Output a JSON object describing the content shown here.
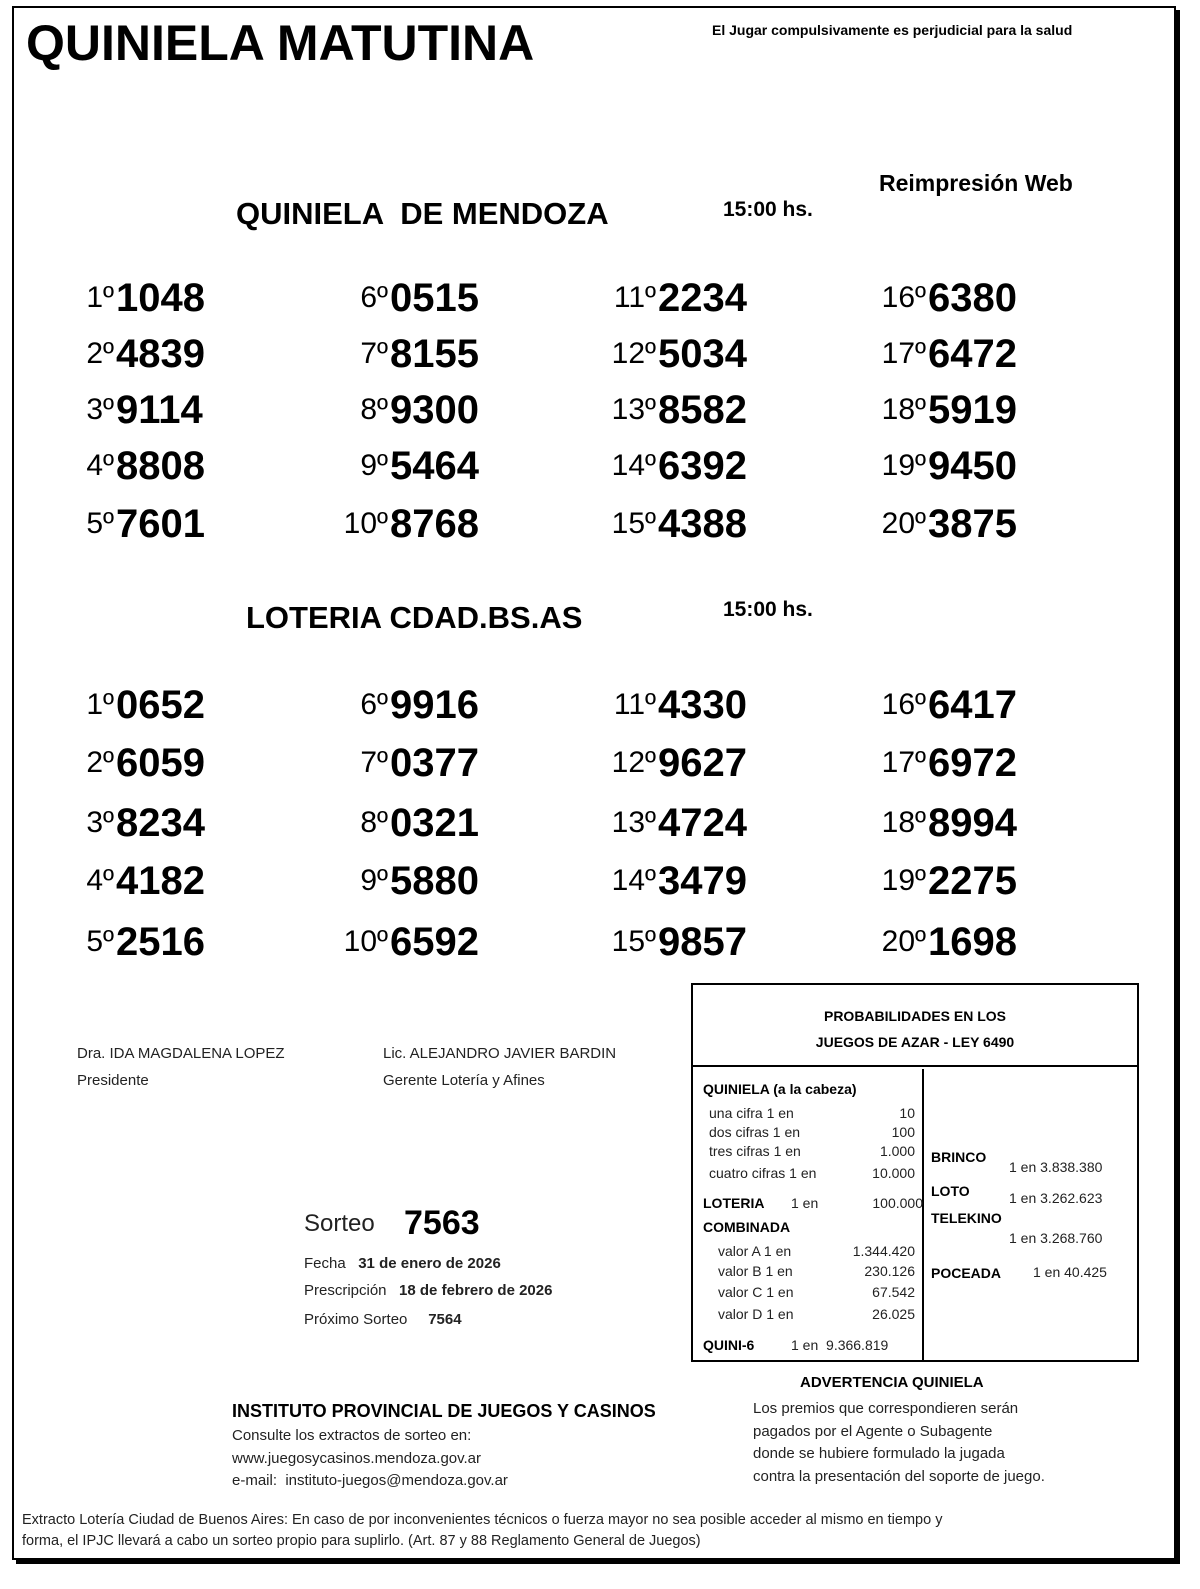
{
  "header": {
    "title": "QUINIELA MATUTINA",
    "warning": "El Jugar compulsivamente es perjudicial para la salud",
    "reprint": "Reimpresión Web"
  },
  "mendoza": {
    "title": "QUINIELA  DE MENDOZA",
    "time": "15:00 hs.",
    "results": [
      {
        "pos": "1º",
        "num": "1048"
      },
      {
        "pos": "2º",
        "num": "4839"
      },
      {
        "pos": "3º",
        "num": "9114"
      },
      {
        "pos": "4º",
        "num": "8808"
      },
      {
        "pos": "5º",
        "num": "7601"
      },
      {
        "pos": "6º",
        "num": "0515"
      },
      {
        "pos": "7º",
        "num": "8155"
      },
      {
        "pos": "8º",
        "num": "9300"
      },
      {
        "pos": "9º",
        "num": "5464"
      },
      {
        "pos": "10º",
        "num": "8768"
      },
      {
        "pos": "11º",
        "num": "2234"
      },
      {
        "pos": "12º",
        "num": "5034"
      },
      {
        "pos": "13º",
        "num": "8582"
      },
      {
        "pos": "14º",
        "num": "6392"
      },
      {
        "pos": "15º",
        "num": "4388"
      },
      {
        "pos": "16º",
        "num": "6380"
      },
      {
        "pos": "17º",
        "num": "6472"
      },
      {
        "pos": "18º",
        "num": "5919"
      },
      {
        "pos": "19º",
        "num": "9450"
      },
      {
        "pos": "20º",
        "num": "3875"
      }
    ]
  },
  "loteria": {
    "title": "LOTERIA CDAD.BS.AS",
    "time": "15:00 hs.",
    "results": [
      {
        "pos": "1º",
        "num": "0652"
      },
      {
        "pos": "2º",
        "num": "6059"
      },
      {
        "pos": "3º",
        "num": "8234"
      },
      {
        "pos": "4º",
        "num": "4182"
      },
      {
        "pos": "5º",
        "num": "2516"
      },
      {
        "pos": "6º",
        "num": "9916"
      },
      {
        "pos": "7º",
        "num": "0377"
      },
      {
        "pos": "8º",
        "num": "0321"
      },
      {
        "pos": "9º",
        "num": "5880"
      },
      {
        "pos": "10º",
        "num": "6592"
      },
      {
        "pos": "11º",
        "num": "4330"
      },
      {
        "pos": "12º",
        "num": "9627"
      },
      {
        "pos": "13º",
        "num": "4724"
      },
      {
        "pos": "14º",
        "num": "3479"
      },
      {
        "pos": "15º",
        "num": "9857"
      },
      {
        "pos": "16º",
        "num": "6417"
      },
      {
        "pos": "17º",
        "num": "6972"
      },
      {
        "pos": "18º",
        "num": "8994"
      },
      {
        "pos": "19º",
        "num": "2275"
      },
      {
        "pos": "20º",
        "num": "1698"
      }
    ]
  },
  "signatures": [
    {
      "name": "Dra. IDA MAGDALENA LOPEZ",
      "role": "Presidente"
    },
    {
      "name": "Lic. ALEJANDRO JAVIER BARDIN",
      "role": "Gerente Lotería y Afines"
    }
  ],
  "sorteo": {
    "label": "Sorteo",
    "number": "7563",
    "fecha_label": "Fecha",
    "fecha": "31 de enero de 2026",
    "prescripcion_label": "Prescripción",
    "prescripcion": "18 de febrero de 2026",
    "proximo_label": "Próximo Sorteo",
    "proximo": "7564"
  },
  "probabilidades": {
    "title1": "PROBABILIDADES EN LOS",
    "title2": "JUEGOS DE AZAR - LEY 6490",
    "quiniela_title": "QUINIELA (a la cabeza)",
    "quiniela": [
      {
        "label": "una cifra  1 en",
        "value": "10"
      },
      {
        "label": "dos cifras 1 en",
        "value": "100"
      },
      {
        "label": "tres cifras 1 en",
        "value": "1.000"
      },
      {
        "label": "cuatro cifras 1 en",
        "value": "10.000"
      }
    ],
    "loteria_label": "LOTERIA",
    "loteria_en": "1 en",
    "loteria_value": "100.000",
    "combinada_title": "COMBINADA",
    "combinada": [
      {
        "label": "valor A 1 en",
        "value": "1.344.420"
      },
      {
        "label": "valor B 1 en",
        "value": "230.126"
      },
      {
        "label": "valor C 1 en",
        "value": "67.542"
      },
      {
        "label": "valor D 1 en",
        "value": "26.025"
      }
    ],
    "quini6_label": "QUINI-6",
    "quini6_value": "1 en  9.366.819",
    "brinco_label": "BRINCO",
    "brinco_value": "1 en 3.838.380",
    "loto_label": "LOTO",
    "loto_value": "1 en 3.262.623",
    "telekino_label": "TELEKINO",
    "telekino_value": "1 en 3.268.760",
    "poceada_label": "POCEADA",
    "poceada_value": "1 en 40.425"
  },
  "advertencia": {
    "title": "ADVERTENCIA QUINIELA",
    "lines": [
      "Los premios que correspondieren serán",
      "pagados por el Agente o Subagente",
      "donde se hubiere formulado la jugada",
      "contra la presentación del soporte de juego."
    ]
  },
  "instituto": {
    "title": "INSTITUTO PROVINCIAL DE JUEGOS Y CASINOS",
    "line1": "Consulte los extractos de sorteo en:",
    "web": "www.juegosycasinos.mendoza.gov.ar",
    "email": "e-mail:  instituto-juegos@mendoza.gov.ar"
  },
  "footer": {
    "line1": "Extracto Lotería Ciudad de Buenos Aires: En caso de por inconvenientes técnicos o fuerza mayor no sea posible acceder al mismo en tiempo y",
    "line2": "forma, el IPJC llevará a cabo un sorteo propio para suplirlo. (Art. 87 y 88 Reglamento General de Juegos)"
  }
}
